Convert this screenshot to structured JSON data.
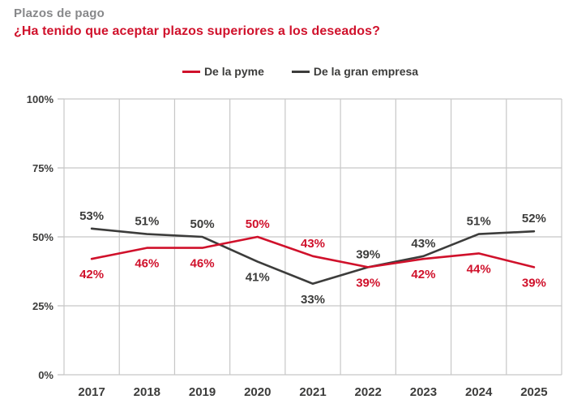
{
  "header": {
    "title": "Plazos de pago",
    "question": "¿Ha tenido que aceptar plazos superiores a los deseados?"
  },
  "legend": [
    {
      "label": "De la pyme",
      "color": "#d0112b"
    },
    {
      "label": "De la gran empresa",
      "color": "#3c3c3b"
    }
  ],
  "chart_data": {
    "type": "line",
    "title": "Plazos de pago",
    "subtitle": "¿Ha tenido que aceptar plazos superiores a los deseados?",
    "categories": [
      "2017",
      "2018",
      "2019",
      "2020",
      "2021",
      "2022",
      "2023",
      "2024",
      "2025"
    ],
    "series": [
      {
        "name": "De la pyme",
        "color": "#d0112b",
        "values": [
          42,
          46,
          46,
          50,
          43,
          39,
          42,
          44,
          39
        ]
      },
      {
        "name": "De la gran empresa",
        "color": "#3c3c3b",
        "values": [
          53,
          51,
          50,
          41,
          33,
          39,
          43,
          51,
          52
        ]
      }
    ],
    "xlabel": "",
    "ylabel": "",
    "ylim": [
      0,
      100
    ],
    "y_ticks": [
      0,
      25,
      50,
      75,
      100
    ],
    "y_tick_labels": [
      "0%",
      "25%",
      "50%",
      "75%",
      "100%"
    ],
    "grid": true,
    "legend_position": "top",
    "value_label_suffix": "%"
  },
  "theme": {
    "title_color": "#87888a",
    "accent_red": "#d0112b",
    "text_dark": "#3c3c3b",
    "grid_color": "#c7c7c7",
    "background": "#ffffff"
  }
}
